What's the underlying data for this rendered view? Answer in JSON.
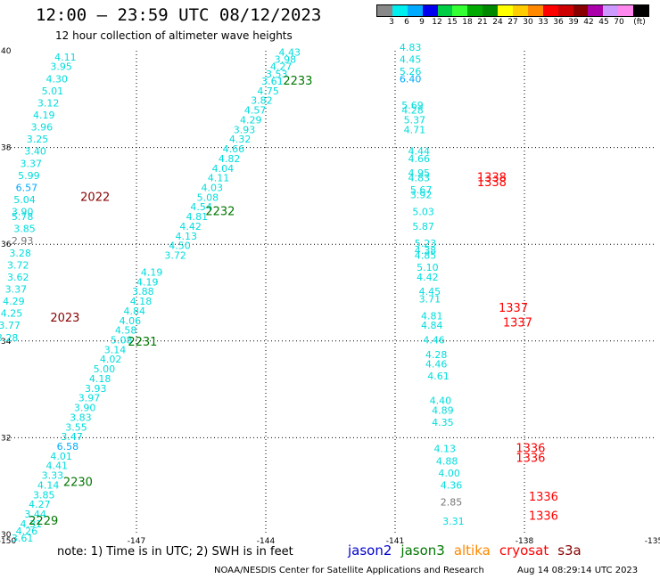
{
  "title": "12:00 – 23:59 UTC 08/12/2023",
  "subtitle": "12 hour collection of altimeter wave heights",
  "color_scale": {
    "colors": [
      "#888888",
      "#00eeee",
      "#00aaff",
      "#0000ee",
      "#00cc44",
      "#33ff33",
      "#00aa00",
      "#008800",
      "#ffff00",
      "#ffcc00",
      "#ff8800",
      "#ff0000",
      "#cc0000",
      "#880000",
      "#aa00aa",
      "#cc99ff",
      "#ff88ee",
      "#000000"
    ],
    "labels": [
      "3",
      "6",
      "9",
      "12",
      "15",
      "18",
      "21",
      "24",
      "27",
      "30",
      "33",
      "36",
      "39",
      "42",
      "45",
      "70",
      "(ft)"
    ]
  },
  "map": {
    "lon_range": [
      -150,
      -135
    ],
    "lat_range": [
      30,
      40
    ],
    "x_tick_labels": [
      "-150",
      "-147",
      "-144",
      "-141",
      "-138",
      "-135"
    ],
    "y_tick_labels": [
      "40",
      "38",
      "36",
      "34",
      "32",
      "30"
    ],
    "grid": true,
    "track_labels": [
      {
        "text": "2233",
        "color": "#007700",
        "lon": -143.6,
        "lat": 39.3
      },
      {
        "text": "2232",
        "color": "#007700",
        "lon": -145.4,
        "lat": 36.6
      },
      {
        "text": "2231",
        "color": "#007700",
        "lon": -147.2,
        "lat": 33.9
      },
      {
        "text": "2230",
        "color": "#007700",
        "lon": -148.7,
        "lat": 31.0
      },
      {
        "text": "2229",
        "color": "#007700",
        "lon": -149.5,
        "lat": 30.2
      },
      {
        "text": "2022",
        "color": "#880000",
        "lon": -148.3,
        "lat": 36.9
      },
      {
        "text": "2023",
        "color": "#880000",
        "lon": -149.0,
        "lat": 34.4
      },
      {
        "text": "1338",
        "color": "#ff0000",
        "lon": -139.1,
        "lat": 37.3
      },
      {
        "text": "1338",
        "color": "#ff0000",
        "lon": -139.1,
        "lat": 37.2
      },
      {
        "text": "1337",
        "color": "#ff0000",
        "lon": -138.6,
        "lat": 34.6
      },
      {
        "text": "1337",
        "color": "#ff0000",
        "lon": -138.5,
        "lat": 34.3
      },
      {
        "text": "1336",
        "color": "#ff0000",
        "lon": -138.2,
        "lat": 31.7
      },
      {
        "text": "1336",
        "color": "#ff0000",
        "lon": -138.2,
        "lat": 31.5
      },
      {
        "text": "1336",
        "color": "#ff0000",
        "lon": -137.9,
        "lat": 30.7
      },
      {
        "text": "1336",
        "color": "#ff0000",
        "lon": -137.9,
        "lat": 30.3
      }
    ],
    "observations": [
      {
        "v": "4.11",
        "lon": -148.9,
        "lat": 39.8,
        "c": "#00dddd"
      },
      {
        "v": "3.95",
        "lon": -149.0,
        "lat": 39.6,
        "c": "#00dddd"
      },
      {
        "v": "4.30",
        "lon": -149.1,
        "lat": 39.35,
        "c": "#00dddd"
      },
      {
        "v": "5.01",
        "lon": -149.2,
        "lat": 39.1,
        "c": "#00dddd"
      },
      {
        "v": "3.12",
        "lon": -149.3,
        "lat": 38.85,
        "c": "#00dddd"
      },
      {
        "v": "4.19",
        "lon": -149.4,
        "lat": 38.6,
        "c": "#00dddd"
      },
      {
        "v": "3.96",
        "lon": -149.45,
        "lat": 38.35,
        "c": "#00dddd"
      },
      {
        "v": "3.25",
        "lon": -149.55,
        "lat": 38.1,
        "c": "#00dddd"
      },
      {
        "v": "3.40",
        "lon": -149.6,
        "lat": 37.85,
        "c": "#00dddd"
      },
      {
        "v": "3.37",
        "lon": -149.7,
        "lat": 37.6,
        "c": "#00dddd"
      },
      {
        "v": "5.99",
        "lon": -149.75,
        "lat": 37.35,
        "c": "#00dddd"
      },
      {
        "v": "6.57",
        "lon": -149.8,
        "lat": 37.1,
        "c": "#00aaff"
      },
      {
        "v": "5.04",
        "lon": -149.85,
        "lat": 36.85,
        "c": "#00dddd"
      },
      {
        "v": "3.90",
        "lon": -149.9,
        "lat": 36.6,
        "c": "#00dddd"
      },
      {
        "v": "5.78",
        "lon": -149.9,
        "lat": 36.5,
        "c": "#00dddd"
      },
      {
        "v": "3.85",
        "lon": -149.85,
        "lat": 36.25,
        "c": "#00dddd"
      },
      {
        "v": "2.93",
        "lon": -149.9,
        "lat": 36.0,
        "c": "#777777"
      },
      {
        "v": "3.28",
        "lon": -149.95,
        "lat": 35.75,
        "c": "#00dddd"
      },
      {
        "v": "3.72",
        "lon": -150.0,
        "lat": 35.5,
        "c": "#00dddd"
      },
      {
        "v": "3.62",
        "lon": -150.0,
        "lat": 35.25,
        "c": "#00dddd"
      },
      {
        "v": "3.37",
        "lon": -150.05,
        "lat": 35.0,
        "c": "#00dddd"
      },
      {
        "v": "4.29",
        "lon": -150.1,
        "lat": 34.75,
        "c": "#00dddd"
      },
      {
        "v": "4.25",
        "lon": -150.15,
        "lat": 34.5,
        "c": "#00dddd"
      },
      {
        "v": "3.77",
        "lon": -150.2,
        "lat": 34.25,
        "c": "#00dddd"
      },
      {
        "v": "3.28",
        "lon": -150.25,
        "lat": 34.0,
        "c": "#00dddd"
      },
      {
        "v": "4.43",
        "lon": -143.7,
        "lat": 39.9,
        "c": "#00dddd"
      },
      {
        "v": "3.98",
        "lon": -143.8,
        "lat": 39.75,
        "c": "#00dddd"
      },
      {
        "v": "4.27",
        "lon": -143.9,
        "lat": 39.6,
        "c": "#00dddd"
      },
      {
        "v": "3.53",
        "lon": -144.0,
        "lat": 39.45,
        "c": "#00dddd"
      },
      {
        "v": "3.61",
        "lon": -144.1,
        "lat": 39.3,
        "c": "#00dddd"
      },
      {
        "v": "4.75",
        "lon": -144.2,
        "lat": 39.1,
        "c": "#00dddd"
      },
      {
        "v": "3.82",
        "lon": -144.35,
        "lat": 38.9,
        "c": "#00dddd"
      },
      {
        "v": "4.57",
        "lon": -144.5,
        "lat": 38.7,
        "c": "#00dddd"
      },
      {
        "v": "4.29",
        "lon": -144.6,
        "lat": 38.5,
        "c": "#00dddd"
      },
      {
        "v": "3.93",
        "lon": -144.75,
        "lat": 38.3,
        "c": "#00dddd"
      },
      {
        "v": "4.32",
        "lon": -144.85,
        "lat": 38.1,
        "c": "#00dddd"
      },
      {
        "v": "4.66",
        "lon": -145.0,
        "lat": 37.9,
        "c": "#00dddd"
      },
      {
        "v": "4.82",
        "lon": -145.1,
        "lat": 37.7,
        "c": "#00dddd"
      },
      {
        "v": "4.04",
        "lon": -145.25,
        "lat": 37.5,
        "c": "#00dddd"
      },
      {
        "v": "4.11",
        "lon": -145.35,
        "lat": 37.3,
        "c": "#00dddd"
      },
      {
        "v": "4.03",
        "lon": -145.5,
        "lat": 37.1,
        "c": "#00dddd"
      },
      {
        "v": "5.08",
        "lon": -145.6,
        "lat": 36.9,
        "c": "#00dddd"
      },
      {
        "v": "4.54",
        "lon": -145.75,
        "lat": 36.7,
        "c": "#00dddd"
      },
      {
        "v": "4.81",
        "lon": -145.85,
        "lat": 36.5,
        "c": "#00dddd"
      },
      {
        "v": "4.42",
        "lon": -146.0,
        "lat": 36.3,
        "c": "#00dddd"
      },
      {
        "v": "4.13",
        "lon": -146.1,
        "lat": 36.1,
        "c": "#00dddd"
      },
      {
        "v": "4.50",
        "lon": -146.25,
        "lat": 35.9,
        "c": "#00dddd"
      },
      {
        "v": "3.72",
        "lon": -146.35,
        "lat": 35.7,
        "c": "#00dddd"
      },
      {
        "v": "4.19",
        "lon": -146.9,
        "lat": 35.35,
        "c": "#00dddd"
      },
      {
        "v": "4.19",
        "lon": -147.0,
        "lat": 35.15,
        "c": "#00dddd"
      },
      {
        "v": "3.88",
        "lon": -147.1,
        "lat": 34.95,
        "c": "#00dddd"
      },
      {
        "v": "4.18",
        "lon": -147.15,
        "lat": 34.75,
        "c": "#00dddd"
      },
      {
        "v": "4.84",
        "lon": -147.3,
        "lat": 34.55,
        "c": "#00dddd"
      },
      {
        "v": "4.06",
        "lon": -147.4,
        "lat": 34.35,
        "c": "#00dddd"
      },
      {
        "v": "4.58",
        "lon": -147.5,
        "lat": 34.15,
        "c": "#00dddd"
      },
      {
        "v": "5.08",
        "lon": -147.6,
        "lat": 33.95,
        "c": "#00dddd"
      },
      {
        "v": "3.14",
        "lon": -147.75,
        "lat": 33.75,
        "c": "#00dddd"
      },
      {
        "v": "4.02",
        "lon": -147.85,
        "lat": 33.55,
        "c": "#00dddd"
      },
      {
        "v": "5.00",
        "lon": -148.0,
        "lat": 33.35,
        "c": "#00dddd"
      },
      {
        "v": "4.18",
        "lon": -148.1,
        "lat": 33.15,
        "c": "#00dddd"
      },
      {
        "v": "3.93",
        "lon": -148.2,
        "lat": 32.95,
        "c": "#00dddd"
      },
      {
        "v": "3.97",
        "lon": -148.35,
        "lat": 32.75,
        "c": "#00dddd"
      },
      {
        "v": "3.90",
        "lon": -148.45,
        "lat": 32.55,
        "c": "#00dddd"
      },
      {
        "v": "3.83",
        "lon": -148.55,
        "lat": 32.35,
        "c": "#00dddd"
      },
      {
        "v": "3.55",
        "lon": -148.65,
        "lat": 32.15,
        "c": "#00dddd"
      },
      {
        "v": "3.47",
        "lon": -148.75,
        "lat": 31.95,
        "c": "#00dddd"
      },
      {
        "v": "6.58",
        "lon": -148.85,
        "lat": 31.75,
        "c": "#00aaff"
      },
      {
        "v": "4.01",
        "lon": -149.0,
        "lat": 31.55,
        "c": "#00dddd"
      },
      {
        "v": "4.41",
        "lon": -149.1,
        "lat": 31.35,
        "c": "#00dddd"
      },
      {
        "v": "3.33",
        "lon": -149.2,
        "lat": 31.15,
        "c": "#00dddd"
      },
      {
        "v": "4.14",
        "lon": -149.3,
        "lat": 30.95,
        "c": "#00dddd"
      },
      {
        "v": "3.85",
        "lon": -149.4,
        "lat": 30.75,
        "c": "#00dddd"
      },
      {
        "v": "4.27",
        "lon": -149.5,
        "lat": 30.55,
        "c": "#00dddd"
      },
      {
        "v": "3.44",
        "lon": -149.6,
        "lat": 30.35,
        "c": "#00dddd"
      },
      {
        "v": "4.31",
        "lon": -149.7,
        "lat": 30.15,
        "c": "#00dddd"
      },
      {
        "v": "4.26",
        "lon": -149.8,
        "lat": 30.0,
        "c": "#00dddd"
      },
      {
        "v": "3.61",
        "lon": -149.9,
        "lat": 29.85,
        "c": "#00dddd"
      },
      {
        "v": "4.83",
        "lon": -140.9,
        "lat": 40.0,
        "c": "#00dddd"
      },
      {
        "v": "4.45",
        "lon": -140.9,
        "lat": 39.75,
        "c": "#00dddd"
      },
      {
        "v": "5.26",
        "lon": -140.9,
        "lat": 39.5,
        "c": "#00dddd"
      },
      {
        "v": "6.40",
        "lon": -140.9,
        "lat": 39.35,
        "c": "#00aaff"
      },
      {
        "v": "5.69",
        "lon": -140.85,
        "lat": 38.8,
        "c": "#00dddd"
      },
      {
        "v": "4.28",
        "lon": -140.85,
        "lat": 38.7,
        "c": "#00dddd"
      },
      {
        "v": "5.37",
        "lon": -140.8,
        "lat": 38.5,
        "c": "#00dddd"
      },
      {
        "v": "4.71",
        "lon": -140.8,
        "lat": 38.3,
        "c": "#00dddd"
      },
      {
        "v": "4.44",
        "lon": -140.7,
        "lat": 37.85,
        "c": "#00dddd"
      },
      {
        "v": "4.66",
        "lon": -140.7,
        "lat": 37.7,
        "c": "#00dddd"
      },
      {
        "v": "4.95",
        "lon": -140.7,
        "lat": 37.4,
        "c": "#00dddd"
      },
      {
        "v": "4.83",
        "lon": -140.7,
        "lat": 37.3,
        "c": "#00dddd"
      },
      {
        "v": "5.67",
        "lon": -140.65,
        "lat": 37.05,
        "c": "#00dddd"
      },
      {
        "v": "3.92",
        "lon": -140.65,
        "lat": 36.95,
        "c": "#00dddd"
      },
      {
        "v": "5.03",
        "lon": -140.6,
        "lat": 36.6,
        "c": "#00dddd"
      },
      {
        "v": "5.87",
        "lon": -140.6,
        "lat": 36.3,
        "c": "#00dddd"
      },
      {
        "v": "5.23",
        "lon": -140.55,
        "lat": 35.95,
        "c": "#00dddd"
      },
      {
        "v": "4.38",
        "lon": -140.55,
        "lat": 35.8,
        "c": "#00dddd"
      },
      {
        "v": "4.85",
        "lon": -140.55,
        "lat": 35.7,
        "c": "#00dddd"
      },
      {
        "v": "5.10",
        "lon": -140.5,
        "lat": 35.45,
        "c": "#00dddd"
      },
      {
        "v": "4.42",
        "lon": -140.5,
        "lat": 35.25,
        "c": "#00dddd"
      },
      {
        "v": "4.45",
        "lon": -140.45,
        "lat": 34.95,
        "c": "#00dddd"
      },
      {
        "v": "3.71",
        "lon": -140.45,
        "lat": 34.8,
        "c": "#00dddd"
      },
      {
        "v": "4.81",
        "lon": -140.4,
        "lat": 34.45,
        "c": "#00dddd"
      },
      {
        "v": "4.84",
        "lon": -140.4,
        "lat": 34.25,
        "c": "#00dddd"
      },
      {
        "v": "4.46",
        "lon": -140.35,
        "lat": 33.95,
        "c": "#00dddd"
      },
      {
        "v": "4.28",
        "lon": -140.3,
        "lat": 33.65,
        "c": "#00dddd"
      },
      {
        "v": "4.46",
        "lon": -140.3,
        "lat": 33.45,
        "c": "#00dddd"
      },
      {
        "v": "4.61",
        "lon": -140.25,
        "lat": 33.2,
        "c": "#00dddd"
      },
      {
        "v": "4.40",
        "lon": -140.2,
        "lat": 32.7,
        "c": "#00dddd"
      },
      {
        "v": "4.89",
        "lon": -140.15,
        "lat": 32.5,
        "c": "#00dddd"
      },
      {
        "v": "4.35",
        "lon": -140.15,
        "lat": 32.25,
        "c": "#00dddd"
      },
      {
        "v": "4.13",
        "lon": -140.1,
        "lat": 31.7,
        "c": "#00dddd"
      },
      {
        "v": "4.88",
        "lon": -140.05,
        "lat": 31.45,
        "c": "#00dddd"
      },
      {
        "v": "4.00",
        "lon": -140.0,
        "lat": 31.2,
        "c": "#00dddd"
      },
      {
        "v": "4.36",
        "lon": -139.95,
        "lat": 30.95,
        "c": "#00dddd"
      },
      {
        "v": "2.85",
        "lon": -139.95,
        "lat": 30.6,
        "c": "#777777"
      },
      {
        "v": "3.31",
        "lon": -139.9,
        "lat": 30.2,
        "c": "#00dddd"
      }
    ]
  },
  "note": "note:  1) Time is in UTC;  2) SWH is in feet",
  "satellites": [
    {
      "name": "jason2",
      "color": "#0000cc"
    },
    {
      "name": "jason3",
      "color": "#007700"
    },
    {
      "name": "altika",
      "color": "#ff8800"
    },
    {
      "name": "cryosat",
      "color": "#ff0000"
    },
    {
      "name": "s3a",
      "color": "#880000"
    }
  ],
  "footer_left": "NOAA/NESDIS Center for Satellite Applications and Research",
  "footer_right": "Aug 14 08:29:14 UTC 2023"
}
